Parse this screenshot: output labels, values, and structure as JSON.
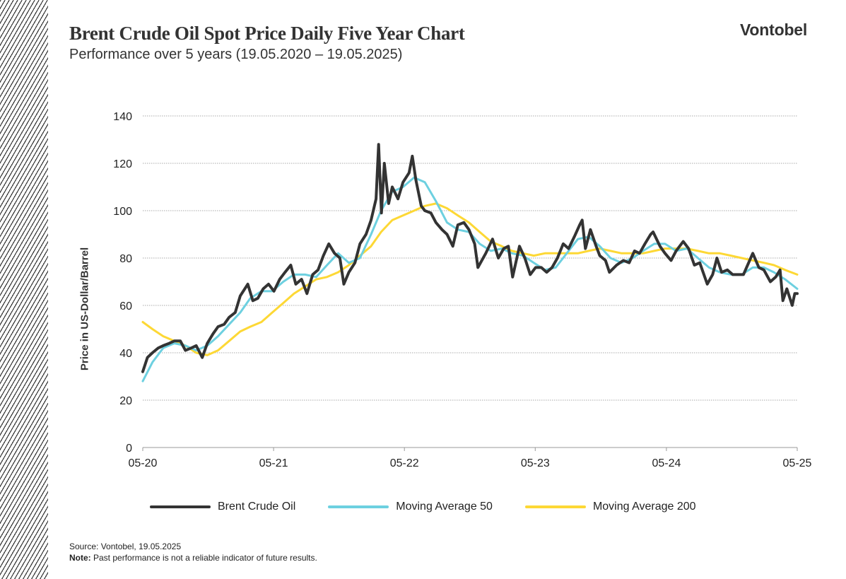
{
  "header": {
    "title": "Brent Crude Oil Spot Price Daily Five Year Chart",
    "subtitle": "Performance over 5 years (19.05.2020 – 19.05.2025)",
    "logo": "Vontobel"
  },
  "footer": {
    "source": "Source: Vontobel, 19.05.2025",
    "note_label": "Note:",
    "note_text": " Past performance is not a reliable indicator of future results."
  },
  "chart_data": {
    "type": "line",
    "title": "Brent Crude Oil Spot Price Daily Five Year Chart",
    "ylabel": "Price in US-Dollar/Barrel",
    "xlabel": "",
    "ylim": [
      0,
      140
    ],
    "yticks": [
      0,
      20,
      40,
      60,
      80,
      100,
      120,
      140
    ],
    "xlim": [
      "2020-05-19",
      "2025-05-19"
    ],
    "xticks": [
      {
        "date": "2020-05-19",
        "label": "05-20"
      },
      {
        "date": "2021-05-19",
        "label": "05-21"
      },
      {
        "date": "2022-05-19",
        "label": "05-22"
      },
      {
        "date": "2023-05-19",
        "label": "05-23"
      },
      {
        "date": "2024-05-19",
        "label": "05-24"
      },
      {
        "date": "2025-05-19",
        "label": "05-25"
      }
    ],
    "grid": "horizontal dotted",
    "legend": "bottom",
    "series": [
      {
        "name": "Brent Crude Oil",
        "color": "#333333",
        "x": [
          "2020-05-19",
          "2020-06-01",
          "2020-06-15",
          "2020-07-01",
          "2020-07-15",
          "2020-08-01",
          "2020-08-15",
          "2020-09-01",
          "2020-09-15",
          "2020-10-01",
          "2020-10-15",
          "2020-11-01",
          "2020-11-15",
          "2020-12-01",
          "2020-12-15",
          "2021-01-01",
          "2021-01-15",
          "2021-02-01",
          "2021-02-15",
          "2021-03-08",
          "2021-03-22",
          "2021-04-05",
          "2021-04-20",
          "2021-05-05",
          "2021-05-20",
          "2021-06-05",
          "2021-06-20",
          "2021-07-06",
          "2021-07-20",
          "2021-08-05",
          "2021-08-20",
          "2021-09-05",
          "2021-09-20",
          "2021-10-05",
          "2021-10-20",
          "2021-11-05",
          "2021-11-20",
          "2021-12-01",
          "2021-12-15",
          "2022-01-01",
          "2022-01-15",
          "2022-02-01",
          "2022-02-15",
          "2022-03-01",
          "2022-03-08",
          "2022-03-16",
          "2022-03-24",
          "2022-04-05",
          "2022-04-15",
          "2022-05-01",
          "2022-05-15",
          "2022-06-01",
          "2022-06-10",
          "2022-06-20",
          "2022-07-05",
          "2022-07-15",
          "2022-08-01",
          "2022-08-15",
          "2022-09-01",
          "2022-09-15",
          "2022-10-01",
          "2022-10-15",
          "2022-11-01",
          "2022-11-15",
          "2022-12-01",
          "2022-12-10",
          "2023-01-01",
          "2023-01-20",
          "2023-02-05",
          "2023-02-20",
          "2023-03-05",
          "2023-03-17",
          "2023-04-05",
          "2023-04-20",
          "2023-05-05",
          "2023-05-20",
          "2023-06-05",
          "2023-06-20",
          "2023-07-05",
          "2023-07-20",
          "2023-08-05",
          "2023-08-20",
          "2023-09-05",
          "2023-09-20",
          "2023-09-27",
          "2023-10-06",
          "2023-10-20",
          "2023-11-05",
          "2023-11-15",
          "2023-12-01",
          "2023-12-12",
          "2024-01-01",
          "2024-01-20",
          "2024-02-05",
          "2024-02-20",
          "2024-03-05",
          "2024-03-20",
          "2024-04-05",
          "2024-04-12",
          "2024-05-01",
          "2024-05-15",
          "2024-06-01",
          "2024-06-15",
          "2024-07-05",
          "2024-07-20",
          "2024-08-05",
          "2024-08-20",
          "2024-09-10",
          "2024-09-25",
          "2024-10-07",
          "2024-10-20",
          "2024-11-05",
          "2024-11-20",
          "2024-12-05",
          "2024-12-20",
          "2025-01-15",
          "2025-02-01",
          "2025-02-15",
          "2025-03-05",
          "2025-03-20",
          "2025-04-01",
          "2025-04-09",
          "2025-04-20",
          "2025-05-05",
          "2025-05-12",
          "2025-05-19"
        ],
        "values": [
          32,
          38,
          40,
          42,
          43,
          44,
          45,
          45,
          41,
          42,
          43,
          38,
          44,
          48,
          51,
          52,
          55,
          57,
          64,
          69,
          62,
          63,
          67,
          69,
          66,
          71,
          74,
          77,
          69,
          71,
          65,
          73,
          75,
          81,
          86,
          82,
          80,
          69,
          74,
          78,
          86,
          90,
          96,
          105,
          128,
          99,
          120,
          103,
          110,
          105,
          112,
          116,
          123,
          113,
          102,
          100,
          99,
          95,
          92,
          90,
          85,
          94,
          95,
          92,
          86,
          76,
          82,
          88,
          80,
          84,
          85,
          72,
          85,
          80,
          73,
          76,
          76,
          74,
          76,
          80,
          86,
          84,
          89,
          94,
          96,
          84,
          92,
          85,
          81,
          79,
          74,
          77,
          79,
          78,
          83,
          82,
          86,
          90,
          91,
          85,
          82,
          79,
          83,
          87,
          84,
          77,
          78,
          69,
          73,
          80,
          74,
          75,
          73,
          73,
          73,
          82,
          76,
          75,
          70,
          72,
          75,
          62,
          67,
          60,
          65,
          65
        ]
      },
      {
        "name": "Moving Average 50",
        "color": "#6dd0e0",
        "x": [
          "2020-05-19",
          "2020-06-15",
          "2020-07-15",
          "2020-08-15",
          "2020-09-15",
          "2020-10-15",
          "2020-11-15",
          "2020-12-15",
          "2021-01-15",
          "2021-02-15",
          "2021-03-15",
          "2021-04-15",
          "2021-05-15",
          "2021-06-15",
          "2021-07-15",
          "2021-08-15",
          "2021-09-15",
          "2021-10-15",
          "2021-11-15",
          "2021-12-15",
          "2022-01-15",
          "2022-02-15",
          "2022-03-15",
          "2022-04-15",
          "2022-05-15",
          "2022-06-15",
          "2022-07-15",
          "2022-08-15",
          "2022-09-15",
          "2022-10-15",
          "2022-11-15",
          "2022-12-15",
          "2023-01-15",
          "2023-02-15",
          "2023-03-15",
          "2023-04-15",
          "2023-05-15",
          "2023-06-15",
          "2023-07-15",
          "2023-08-15",
          "2023-09-15",
          "2023-10-15",
          "2023-11-15",
          "2023-12-15",
          "2024-01-15",
          "2024-02-15",
          "2024-03-15",
          "2024-04-15",
          "2024-05-15",
          "2024-06-15",
          "2024-07-15",
          "2024-08-15",
          "2024-09-15",
          "2024-10-15",
          "2024-11-15",
          "2024-12-15",
          "2025-01-15",
          "2025-02-15",
          "2025-03-15",
          "2025-04-15",
          "2025-05-19"
        ],
        "values": [
          28,
          36,
          42,
          44,
          43,
          41,
          43,
          47,
          52,
          57,
          63,
          66,
          66,
          70,
          73,
          73,
          72,
          77,
          82,
          78,
          80,
          90,
          100,
          108,
          110,
          114,
          112,
          104,
          95,
          92,
          91,
          86,
          83,
          84,
          82,
          81,
          78,
          75,
          76,
          82,
          88,
          89,
          85,
          80,
          78,
          80,
          83,
          86,
          86,
          83,
          84,
          80,
          76,
          74,
          73,
          73,
          76,
          76,
          74,
          71,
          67
        ]
      },
      {
        "name": "Moving Average 200",
        "color": "#fdd835",
        "x": [
          "2020-05-19",
          "2020-06-15",
          "2020-07-15",
          "2020-08-15",
          "2020-09-15",
          "2020-10-15",
          "2020-11-15",
          "2020-12-15",
          "2021-01-15",
          "2021-02-15",
          "2021-03-15",
          "2021-04-15",
          "2021-05-15",
          "2021-06-15",
          "2021-07-15",
          "2021-08-15",
          "2021-09-15",
          "2021-10-15",
          "2021-11-15",
          "2021-12-15",
          "2022-01-15",
          "2022-02-15",
          "2022-03-15",
          "2022-04-15",
          "2022-05-15",
          "2022-06-15",
          "2022-07-15",
          "2022-08-15",
          "2022-09-15",
          "2022-10-15",
          "2022-11-15",
          "2022-12-15",
          "2023-01-15",
          "2023-02-15",
          "2023-03-15",
          "2023-04-15",
          "2023-05-15",
          "2023-06-15",
          "2023-07-15",
          "2023-08-15",
          "2023-09-15",
          "2023-10-15",
          "2023-11-15",
          "2023-12-15",
          "2024-01-15",
          "2024-02-15",
          "2024-03-15",
          "2024-04-15",
          "2024-05-15",
          "2024-06-15",
          "2024-07-15",
          "2024-08-15",
          "2024-09-15",
          "2024-10-15",
          "2024-11-15",
          "2024-12-15",
          "2025-01-15",
          "2025-02-15",
          "2025-03-15",
          "2025-04-15",
          "2025-05-19"
        ],
        "values": [
          53,
          50,
          47,
          45,
          43,
          40,
          39,
          41,
          45,
          49,
          51,
          53,
          57,
          61,
          65,
          68,
          71,
          72,
          74,
          77,
          81,
          85,
          91,
          96,
          98,
          100,
          102,
          103,
          101,
          98,
          95,
          91,
          87,
          85,
          83,
          82,
          81,
          82,
          82,
          82,
          82,
          83,
          84,
          83,
          82,
          82,
          82,
          83,
          84,
          84,
          84,
          83,
          82,
          82,
          81,
          80,
          79,
          78,
          77,
          75,
          73
        ]
      }
    ]
  }
}
